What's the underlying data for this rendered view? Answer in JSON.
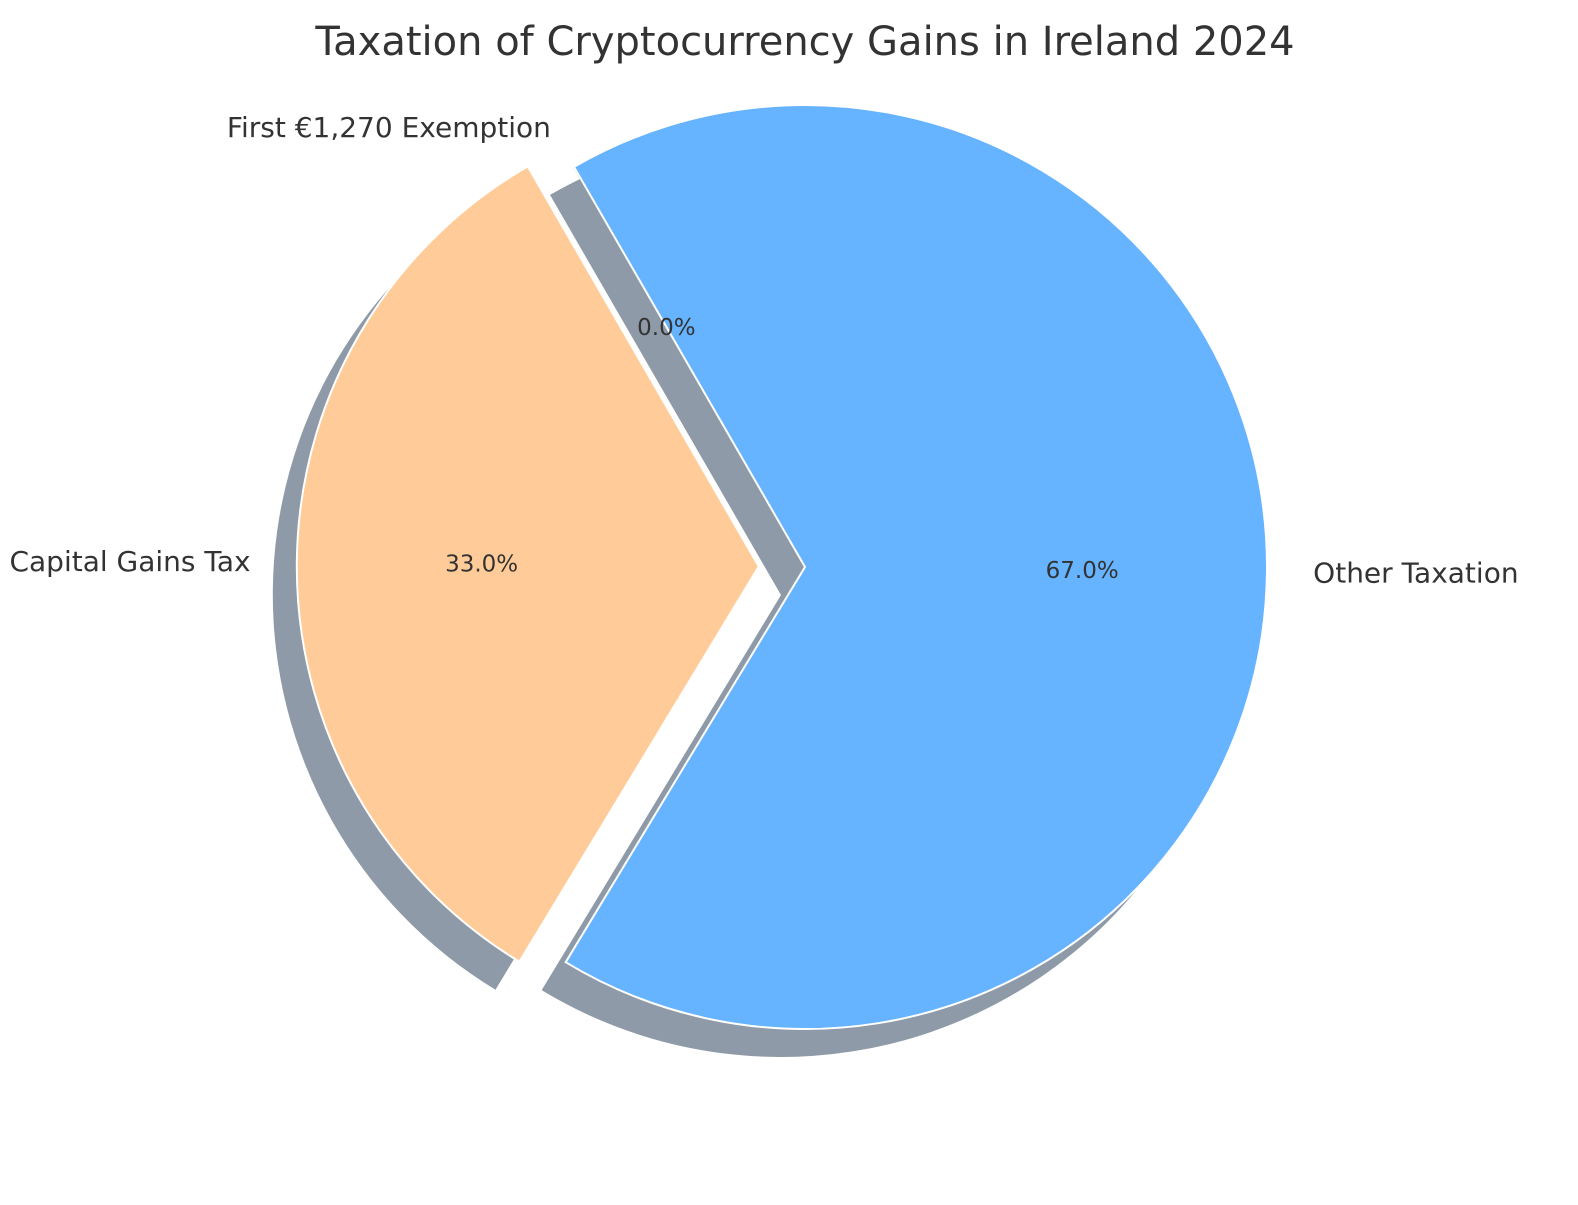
{
  "chart_data": {
    "type": "pie",
    "title": "Taxation of Cryptocurrency Gains in Ireland 2024",
    "slices": [
      {
        "label": "First €1,270 Exemption",
        "value": 0.0,
        "pct_label": "0.0%",
        "color": "#99ff99",
        "exploded": false
      },
      {
        "label": "Capital Gains Tax",
        "value": 33.0,
        "pct_label": "33.0%",
        "color": "#ffcc99",
        "exploded": true
      },
      {
        "label": "Other Taxation",
        "value": 67.0,
        "pct_label": "67.0%",
        "color": "#66b3ff",
        "exploded": false
      }
    ],
    "shadow": true,
    "shadow_color": "#8f9aa8",
    "legend": "none"
  }
}
